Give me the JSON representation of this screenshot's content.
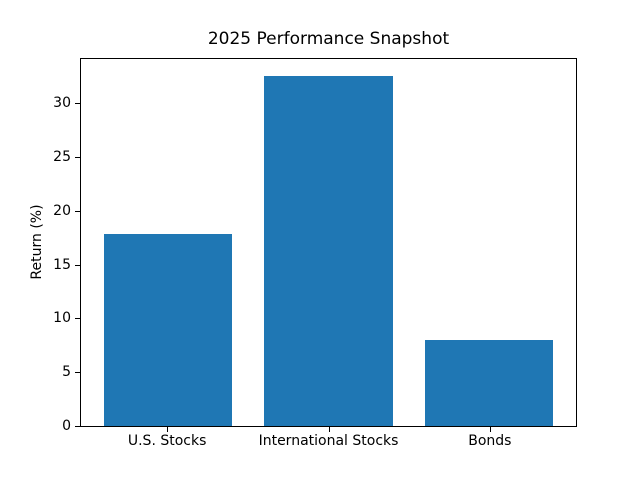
{
  "chart_data": {
    "type": "bar",
    "title": "2025 Performance Snapshot",
    "categories": [
      "U.S. Stocks",
      "International Stocks",
      "Bonds"
    ],
    "values": [
      17.9,
      32.5,
      8.0
    ],
    "xlabel": "",
    "ylabel": "Return (%)",
    "ylim": [
      0,
      34.125
    ],
    "yticks": [
      0,
      5,
      10,
      15,
      20,
      25,
      30
    ],
    "bar_color": "#1f77b4",
    "bar_width_fraction": 0.8,
    "axis_color": "#000000",
    "background_color": "#ffffff",
    "grid": false,
    "legend": false
  }
}
